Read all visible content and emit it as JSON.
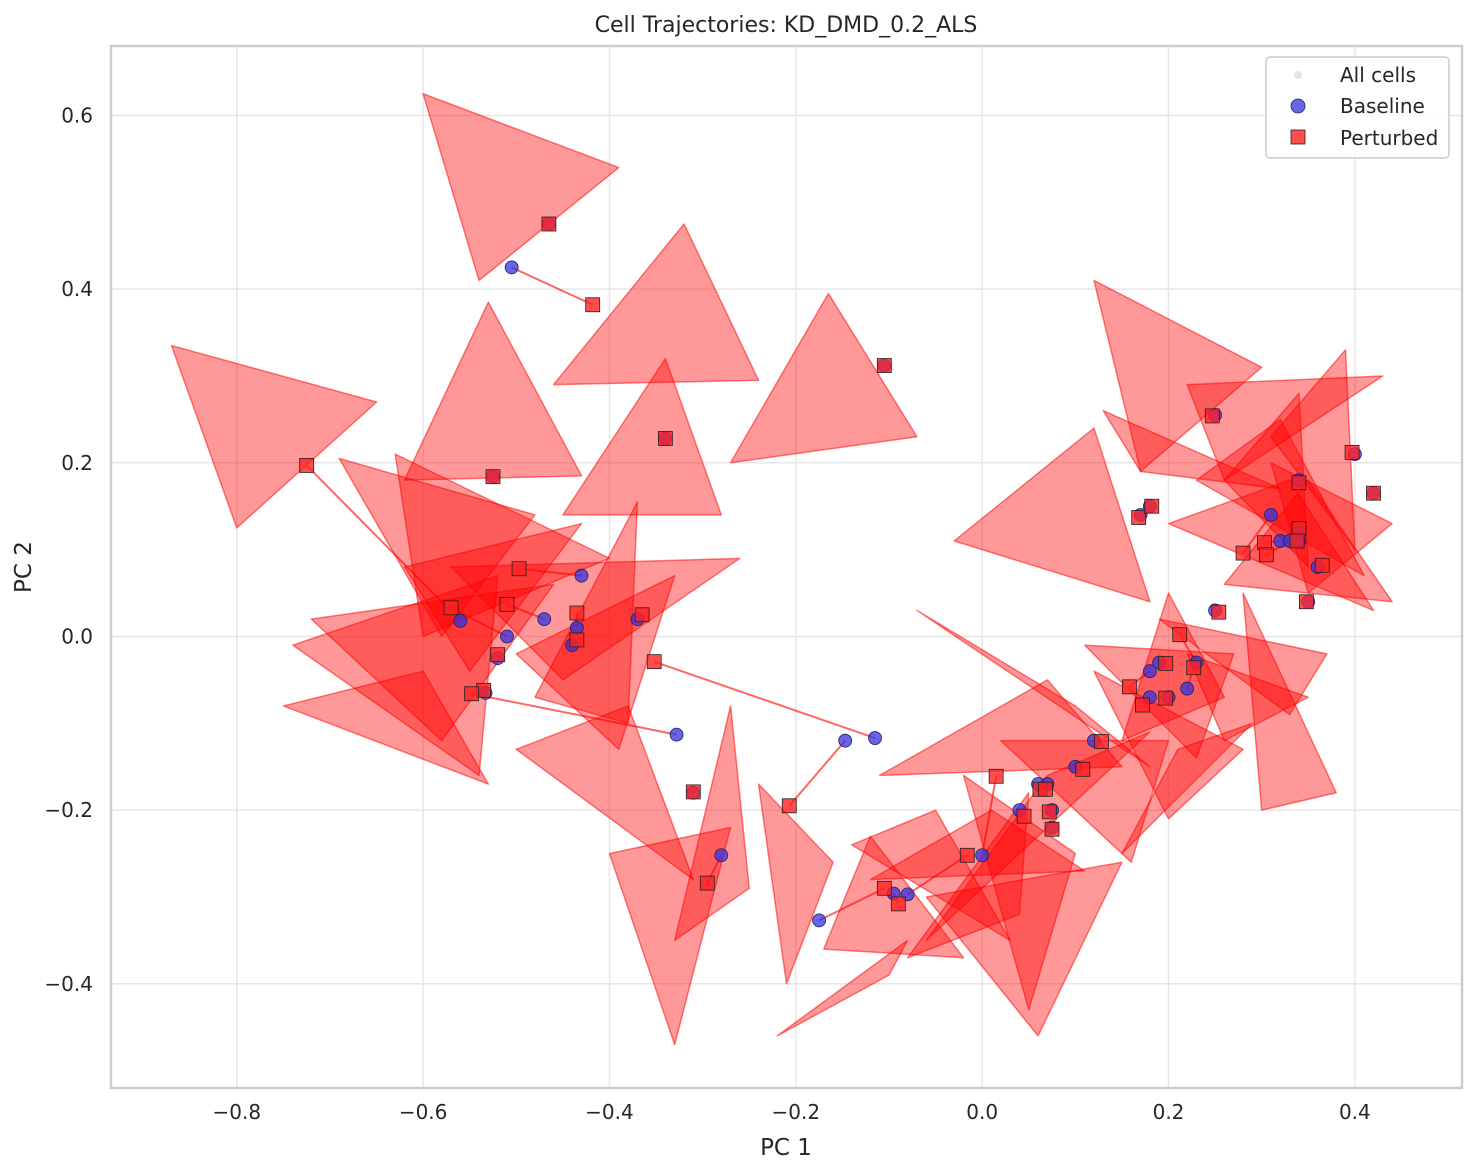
{
  "chart_data": {
    "type": "scatter",
    "title": "Cell Trajectories: KD_DMD_0.2_ALS",
    "xlabel": "PC 1",
    "ylabel": "PC 2",
    "xlim": [
      -0.935,
      0.515
    ],
    "ylim": [
      -0.52,
      0.68
    ],
    "xticks": [
      -0.8,
      -0.6,
      -0.4,
      -0.2,
      0.0,
      0.2,
      0.4
    ],
    "yticks": [
      -0.4,
      -0.2,
      0.0,
      0.2,
      0.4,
      0.6
    ],
    "xtick_labels": [
      "−0.8",
      "−0.6",
      "−0.4",
      "−0.2",
      "0.0",
      "0.2",
      "0.4"
    ],
    "ytick_labels": [
      "−0.4",
      "−0.2",
      "0.0",
      "0.2",
      "0.4",
      "0.6"
    ],
    "grid": true,
    "legend_position": "top-right",
    "colors": {
      "baseline": "#3333dd",
      "perturbed": "#ff2222",
      "arrow": "#ff0000",
      "all_cells": "#cccccc"
    },
    "legend": [
      {
        "label": "All cells",
        "marker": "dot"
      },
      {
        "label": "Baseline",
        "marker": "circle"
      },
      {
        "label": "Perturbed",
        "marker": "square"
      }
    ],
    "trajectories": [
      {
        "baseline": [
          -0.505,
          0.425
        ],
        "perturbed": [
          -0.418,
          0.382
        ]
      },
      {
        "baseline": [
          -0.465,
          0.475
        ],
        "perturbed": [
          -0.465,
          0.475
        ]
      },
      {
        "baseline": [
          -0.105,
          0.312
        ],
        "perturbed": [
          -0.105,
          0.312
        ]
      },
      {
        "baseline": [
          -0.34,
          0.228
        ],
        "perturbed": [
          -0.34,
          0.228
        ]
      },
      {
        "baseline": [
          -0.525,
          0.184
        ],
        "perturbed": [
          -0.525,
          0.184
        ]
      },
      {
        "baseline": [
          -0.56,
          0.018
        ],
        "perturbed": [
          -0.725,
          0.197
        ]
      },
      {
        "baseline": [
          -0.43,
          0.07
        ],
        "perturbed": [
          -0.497,
          0.078
        ]
      },
      {
        "baseline": [
          -0.51,
          0.0
        ],
        "perturbed": [
          -0.57,
          0.033
        ]
      },
      {
        "baseline": [
          -0.47,
          0.02
        ],
        "perturbed": [
          -0.51,
          0.037
        ]
      },
      {
        "baseline": [
          -0.435,
          0.01
        ],
        "perturbed": [
          -0.435,
          0.027
        ]
      },
      {
        "baseline": [
          -0.37,
          0.02
        ],
        "perturbed": [
          -0.365,
          0.025
        ]
      },
      {
        "baseline": [
          -0.44,
          -0.01
        ],
        "perturbed": [
          -0.435,
          -0.004
        ]
      },
      {
        "baseline": [
          -0.115,
          -0.117
        ],
        "perturbed": [
          -0.352,
          -0.029
        ]
      },
      {
        "baseline": [
          -0.52,
          -0.025
        ],
        "perturbed": [
          -0.52,
          -0.021
        ]
      },
      {
        "baseline": [
          -0.533,
          -0.065
        ],
        "perturbed": [
          -0.535,
          -0.062
        ]
      },
      {
        "baseline": [
          -0.328,
          -0.113
        ],
        "perturbed": [
          -0.548,
          -0.066
        ]
      },
      {
        "baseline": [
          -0.147,
          -0.12
        ],
        "perturbed": [
          -0.207,
          -0.195
        ]
      },
      {
        "baseline": [
          -0.31,
          -0.18
        ],
        "perturbed": [
          -0.31,
          -0.179
        ]
      },
      {
        "baseline": [
          -0.28,
          -0.252
        ],
        "perturbed": [
          -0.295,
          -0.284
        ]
      },
      {
        "baseline": [
          -0.175,
          -0.327
        ],
        "perturbed": [
          -0.105,
          -0.29
        ]
      },
      {
        "baseline": [
          -0.095,
          -0.296
        ],
        "perturbed": [
          -0.09,
          -0.308
        ]
      },
      {
        "baseline": [
          -0.08,
          -0.297
        ],
        "perturbed": [
          -0.016,
          -0.252
        ]
      },
      {
        "baseline": [
          0.0,
          -0.252
        ],
        "perturbed": [
          0.015,
          -0.161
        ]
      },
      {
        "baseline": [
          0.04,
          -0.2
        ],
        "perturbed": [
          0.045,
          -0.207
        ]
      },
      {
        "baseline": [
          0.06,
          -0.17
        ],
        "perturbed": [
          0.062,
          -0.176
        ]
      },
      {
        "baseline": [
          0.07,
          -0.17
        ],
        "perturbed": [
          0.068,
          -0.176
        ]
      },
      {
        "baseline": [
          0.075,
          -0.2
        ],
        "perturbed": [
          0.072,
          -0.202
        ]
      },
      {
        "baseline": [
          0.075,
          -0.22
        ],
        "perturbed": [
          0.075,
          -0.222
        ]
      },
      {
        "baseline": [
          0.1,
          -0.15
        ],
        "perturbed": [
          0.108,
          -0.153
        ]
      },
      {
        "baseline": [
          0.12,
          -0.12
        ],
        "perturbed": [
          0.128,
          -0.121
        ]
      },
      {
        "baseline": [
          0.18,
          -0.04
        ],
        "perturbed": [
          0.158,
          -0.058
        ]
      },
      {
        "baseline": [
          0.18,
          -0.07
        ],
        "perturbed": [
          0.172,
          -0.079
        ]
      },
      {
        "baseline": [
          0.19,
          -0.03
        ],
        "perturbed": [
          0.197,
          -0.031
        ]
      },
      {
        "baseline": [
          0.2,
          -0.07
        ],
        "perturbed": [
          0.197,
          -0.071
        ]
      },
      {
        "baseline": [
          0.22,
          -0.06
        ],
        "perturbed": [
          0.227,
          -0.036
        ]
      },
      {
        "baseline": [
          0.23,
          -0.03
        ],
        "perturbed": [
          0.212,
          0.002
        ]
      },
      {
        "baseline": [
          0.25,
          0.03
        ],
        "perturbed": [
          0.254,
          0.028
        ]
      },
      {
        "baseline": [
          0.17,
          0.14
        ],
        "perturbed": [
          0.168,
          0.137
        ]
      },
      {
        "baseline": [
          0.18,
          0.15
        ],
        "perturbed": [
          0.182,
          0.15
        ]
      },
      {
        "baseline": [
          0.25,
          0.255
        ],
        "perturbed": [
          0.247,
          0.254
        ]
      },
      {
        "baseline": [
          0.31,
          0.14
        ],
        "perturbed": [
          0.28,
          0.096
        ]
      },
      {
        "baseline": [
          0.32,
          0.11
        ],
        "perturbed": [
          0.303,
          0.108
        ]
      },
      {
        "baseline": [
          0.33,
          0.11
        ],
        "perturbed": [
          0.305,
          0.094
        ]
      },
      {
        "baseline": [
          0.34,
          0.12
        ],
        "perturbed": [
          0.34,
          0.124
        ]
      },
      {
        "baseline": [
          0.34,
          0.11
        ],
        "perturbed": [
          0.338,
          0.11
        ]
      },
      {
        "baseline": [
          0.34,
          0.18
        ],
        "perturbed": [
          0.34,
          0.177
        ]
      },
      {
        "baseline": [
          0.36,
          0.08
        ],
        "perturbed": [
          0.365,
          0.082
        ]
      },
      {
        "baseline": [
          0.35,
          0.04
        ],
        "perturbed": [
          0.348,
          0.04
        ]
      },
      {
        "baseline": [
          0.4,
          0.21
        ],
        "perturbed": [
          0.397,
          0.212
        ]
      },
      {
        "baseline": [
          0.42,
          0.165
        ],
        "perturbed": [
          0.42,
          0.165
        ]
      }
    ],
    "arrowheads": [
      {
        "tip": [
          -0.39,
          0.54
        ],
        "base": [
          [
            -0.6,
            0.625
          ],
          [
            -0.54,
            0.41
          ]
        ]
      },
      {
        "tip": [
          -0.32,
          0.475
        ],
        "base": [
          [
            -0.46,
            0.29
          ],
          [
            -0.24,
            0.295
          ]
        ]
      },
      {
        "tip": [
          -0.53,
          0.385
        ],
        "base": [
          [
            -0.62,
            0.18
          ],
          [
            -0.43,
            0.185
          ]
        ]
      },
      {
        "tip": [
          -0.34,
          0.32
        ],
        "base": [
          [
            -0.45,
            0.14
          ],
          [
            -0.28,
            0.14
          ]
        ]
      },
      {
        "tip": [
          -0.65,
          0.27
        ],
        "base": [
          [
            -0.87,
            0.335
          ],
          [
            -0.8,
            0.125
          ]
        ]
      },
      {
        "tip": [
          -0.165,
          0.395
        ],
        "base": [
          [
            -0.27,
            0.2
          ],
          [
            -0.07,
            0.23
          ]
        ]
      },
      {
        "tip": [
          -0.58,
          0.0
        ],
        "base": [
          [
            -0.69,
            0.205
          ],
          [
            -0.48,
            0.14
          ]
        ]
      },
      {
        "tip": [
          -0.4,
          0.09
        ],
        "base": [
          [
            -0.63,
            0.21
          ],
          [
            -0.6,
            0.0
          ]
        ]
      },
      {
        "tip": [
          -0.43,
          0.13
        ],
        "base": [
          [
            -0.62,
            0.08
          ],
          [
            -0.55,
            -0.04
          ]
        ]
      },
      {
        "tip": [
          -0.37,
          0.155
        ],
        "base": [
          [
            -0.48,
            -0.07
          ],
          [
            -0.38,
            -0.1
          ]
        ]
      },
      {
        "tip": [
          -0.33,
          0.07
        ],
        "base": [
          [
            -0.5,
            -0.02
          ],
          [
            -0.39,
            -0.13
          ]
        ]
      },
      {
        "tip": [
          -0.26,
          0.09
        ],
        "base": [
          [
            -0.57,
            0.08
          ],
          [
            -0.45,
            -0.05
          ]
        ]
      },
      {
        "tip": [
          -0.58,
          -0.12
        ],
        "base": [
          [
            -0.72,
            0.02
          ],
          [
            -0.46,
            0.06
          ]
        ]
      },
      {
        "tip": [
          -0.54,
          -0.16
        ],
        "base": [
          [
            -0.74,
            -0.01
          ],
          [
            -0.52,
            0.07
          ]
        ]
      },
      {
        "tip": [
          -0.53,
          -0.17
        ],
        "base": [
          [
            -0.75,
            -0.08
          ],
          [
            -0.6,
            -0.04
          ]
        ]
      },
      {
        "tip": [
          -0.31,
          -0.28
        ],
        "base": [
          [
            -0.5,
            -0.13
          ],
          [
            -0.38,
            -0.08
          ]
        ]
      },
      {
        "tip": [
          -0.27,
          -0.08
        ],
        "base": [
          [
            -0.33,
            -0.35
          ],
          [
            -0.25,
            -0.29
          ]
        ]
      },
      {
        "tip": [
          -0.27,
          -0.22
        ],
        "base": [
          [
            -0.33,
            -0.47
          ],
          [
            -0.4,
            -0.25
          ]
        ]
      },
      {
        "tip": [
          -0.16,
          -0.26
        ],
        "base": [
          [
            -0.24,
            -0.17
          ],
          [
            -0.21,
            -0.4
          ]
        ]
      },
      {
        "tip": [
          -0.22,
          -0.46
        ],
        "base": [
          [
            -0.1,
            -0.39
          ],
          [
            -0.08,
            -0.35
          ]
        ]
      },
      {
        "tip": [
          -0.17,
          -0.36
        ],
        "base": [
          [
            -0.12,
            -0.23
          ],
          [
            -0.02,
            -0.37
          ]
        ]
      },
      {
        "tip": [
          -0.14,
          -0.24
        ],
        "base": [
          [
            -0.05,
            -0.2
          ],
          [
            0.03,
            -0.35
          ]
        ]
      },
      {
        "tip": [
          -0.12,
          -0.28
        ],
        "base": [
          [
            0.01,
            -0.2
          ],
          [
            0.11,
            -0.27
          ]
        ]
      },
      {
        "tip": [
          0.04,
          -0.32
        ],
        "base": [
          [
            -0.08,
            -0.37
          ],
          [
            0.05,
            -0.18
          ]
        ]
      },
      {
        "tip": [
          0.05,
          -0.43
        ],
        "base": [
          [
            -0.02,
            -0.16
          ],
          [
            0.1,
            -0.25
          ]
        ]
      },
      {
        "tip": [
          0.06,
          -0.46
        ],
        "base": [
          [
            -0.06,
            -0.3
          ],
          [
            0.15,
            -0.26
          ]
        ]
      },
      {
        "tip": [
          -0.06,
          -0.35
        ],
        "base": [
          [
            0.07,
            -0.16
          ],
          [
            0.18,
            -0.11
          ]
        ]
      },
      {
        "tip": [
          -0.11,
          -0.16
        ],
        "base": [
          [
            0.07,
            -0.05
          ],
          [
            0.15,
            -0.15
          ]
        ]
      },
      {
        "tip": [
          -0.07,
          0.03
        ],
        "base": [
          [
            0.1,
            -0.08
          ],
          [
            0.18,
            -0.15
          ]
        ]
      },
      {
        "tip": [
          0.02,
          -0.12
        ],
        "base": [
          [
            0.16,
            -0.26
          ],
          [
            0.2,
            -0.12
          ]
        ]
      },
      {
        "tip": [
          0.2,
          -0.21
        ],
        "base": [
          [
            0.12,
            -0.04
          ],
          [
            0.28,
            -0.13
          ]
        ]
      },
      {
        "tip": [
          0.15,
          -0.25
        ],
        "base": [
          [
            0.21,
            -0.13
          ],
          [
            0.29,
            -0.1
          ]
        ]
      },
      {
        "tip": [
          0.23,
          -0.14
        ],
        "base": [
          [
            0.11,
            -0.01
          ],
          [
            0.27,
            -0.02
          ]
        ]
      },
      {
        "tip": [
          0.26,
          -0.12
        ],
        "base": [
          [
            0.22,
            -0.02
          ],
          [
            0.35,
            -0.07
          ]
        ]
      },
      {
        "tip": [
          0.2,
          0.05
        ],
        "base": [
          [
            0.15,
            -0.12
          ],
          [
            0.26,
            -0.07
          ]
        ]
      },
      {
        "tip": [
          0.33,
          -0.09
        ],
        "base": [
          [
            0.19,
            0.02
          ],
          [
            0.37,
            -0.02
          ]
        ]
      },
      {
        "tip": [
          0.28,
          0.05
        ],
        "base": [
          [
            0.3,
            -0.2
          ],
          [
            0.38,
            -0.18
          ]
        ]
      },
      {
        "tip": [
          0.12,
          0.24
        ],
        "base": [
          [
            -0.03,
            0.11
          ],
          [
            0.18,
            0.04
          ]
        ]
      },
      {
        "tip": [
          0.13,
          0.26
        ],
        "base": [
          [
            0.17,
            0.19
          ],
          [
            0.32,
            0.17
          ]
        ]
      },
      {
        "tip": [
          0.3,
          0.31
        ],
        "base": [
          [
            0.12,
            0.41
          ],
          [
            0.17,
            0.19
          ]
        ]
      },
      {
        "tip": [
          0.26,
          0.18
        ],
        "base": [
          [
            0.22,
            0.29
          ],
          [
            0.43,
            0.3
          ]
        ]
      },
      {
        "tip": [
          0.35,
          0.08
        ],
        "base": [
          [
            0.26,
            0.18
          ],
          [
            0.34,
            0.28
          ]
        ]
      },
      {
        "tip": [
          0.31,
          0.23
        ],
        "base": [
          [
            0.39,
            0.33
          ],
          [
            0.4,
            0.1
          ]
        ]
      },
      {
        "tip": [
          0.41,
          0.07
        ],
        "base": [
          [
            0.23,
            0.18
          ],
          [
            0.32,
            0.25
          ]
        ]
      },
      {
        "tip": [
          0.42,
          0.03
        ],
        "base": [
          [
            0.2,
            0.13
          ],
          [
            0.33,
            0.18
          ]
        ]
      },
      {
        "tip": [
          0.44,
          0.04
        ],
        "base": [
          [
            0.26,
            0.06
          ],
          [
            0.35,
            0.18
          ]
        ]
      },
      {
        "tip": [
          0.44,
          0.13
        ],
        "base": [
          [
            0.31,
            0.2
          ],
          [
            0.35,
            0.05
          ]
        ]
      }
    ]
  }
}
